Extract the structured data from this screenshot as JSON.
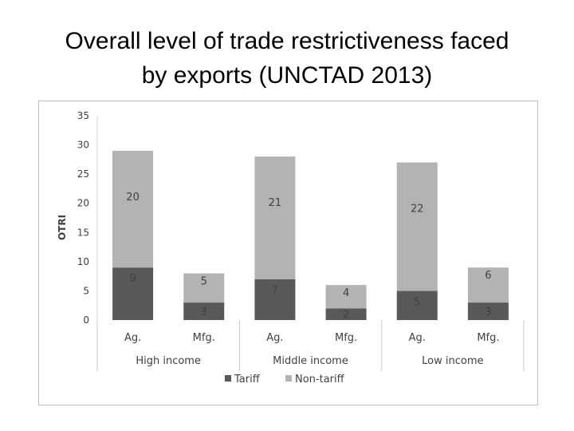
{
  "slide": {
    "title_line1": "Overall level of trade restrictiveness faced",
    "title_line2": "by exports (UNCTAD 2013)"
  },
  "chart_data": {
    "type": "bar",
    "stacked": true,
    "ylabel": "OTRI",
    "ylim": [
      0,
      35
    ],
    "yticks": [
      0,
      5,
      10,
      15,
      20,
      25,
      30,
      35
    ],
    "grid": false,
    "legend_position": "bottom",
    "groups": [
      {
        "name": "High income",
        "categories": [
          "Ag.",
          "Mfg."
        ]
      },
      {
        "name": "Middle income",
        "categories": [
          "Ag.",
          "Mfg."
        ]
      },
      {
        "name": "Low income",
        "categories": [
          "Ag.",
          "Mfg."
        ]
      }
    ],
    "categories": [
      "Ag.",
      "Mfg.",
      "Ag.",
      "Mfg.",
      "Ag.",
      "Mfg."
    ],
    "series": [
      {
        "name": "Tariff",
        "values": [
          9,
          3,
          7,
          2,
          5,
          3
        ],
        "color": "#595959"
      },
      {
        "name": "Non-tariff",
        "values": [
          20,
          5,
          21,
          4,
          22,
          6
        ],
        "color": "#b3b3b3"
      }
    ]
  }
}
